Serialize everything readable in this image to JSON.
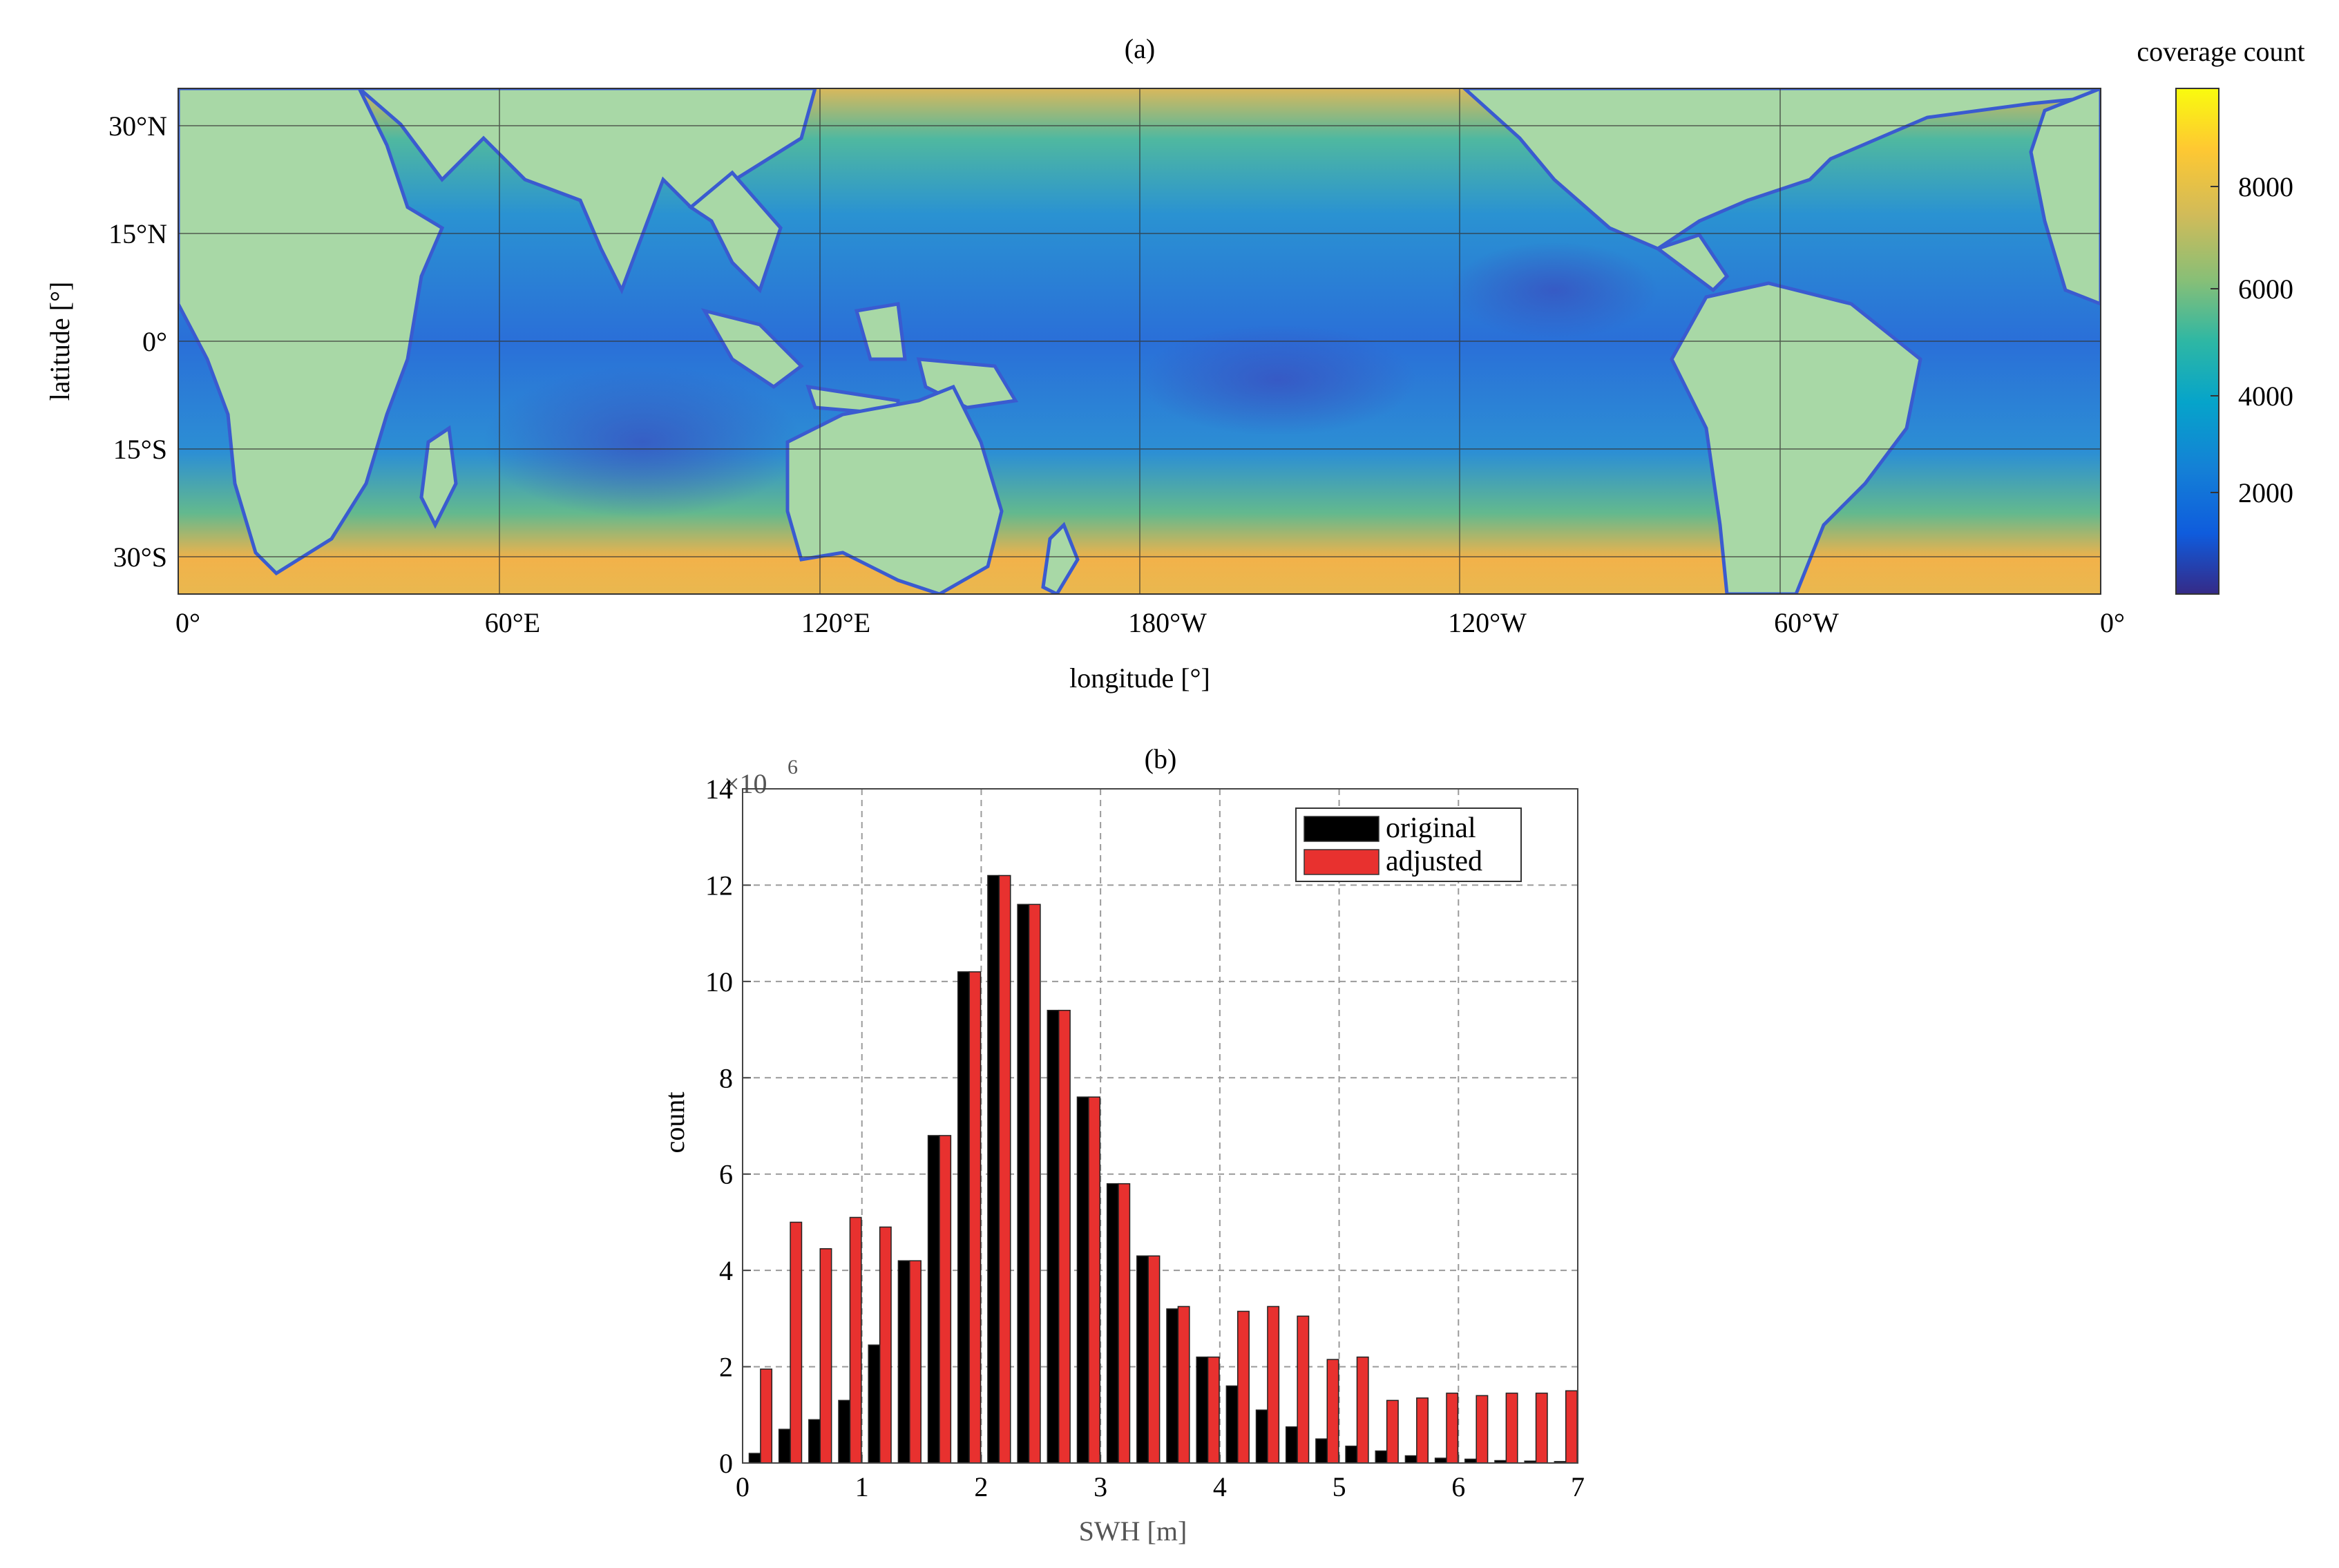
{
  "map_panel": {
    "label": "(a)",
    "xlabel": "longitude [°]",
    "ylabel": "latitude [°]",
    "lon_ticks": [
      "0°",
      "60°E",
      "120°E",
      "180°W",
      "120°W",
      "60°W",
      "0°"
    ],
    "lat_ticks": [
      "30°N",
      "15°N",
      "0°",
      "15°S",
      "30°S"
    ],
    "colorbar": {
      "title": "coverage count",
      "ticks": [
        "2000",
        "4000",
        "6000",
        "8000"
      ],
      "colormap": "parula",
      "range": [
        0,
        10000
      ]
    },
    "colors": {
      "land": "#a8d8a6"
    }
  },
  "chart_data": {
    "type": "bar",
    "title": "(b)",
    "xlabel": "SWH [m]",
    "ylabel": "count",
    "y_multiplier": "×10",
    "y_multiplier_exponent": "6",
    "xlim": [
      0,
      7
    ],
    "ylim": [
      0,
      14
    ],
    "x_ticks": [
      "0",
      "1",
      "2",
      "3",
      "4",
      "5",
      "6",
      "7"
    ],
    "y_ticks": [
      "0",
      "2",
      "4",
      "6",
      "8",
      "10",
      "12",
      "14"
    ],
    "grid": true,
    "legend_position": "top-right",
    "x": [
      0.15,
      0.4,
      0.65,
      0.9,
      1.15,
      1.4,
      1.65,
      1.9,
      2.15,
      2.4,
      2.65,
      2.9,
      3.15,
      3.4,
      3.65,
      3.9,
      4.15,
      4.4,
      4.65,
      4.9,
      5.15,
      5.4,
      5.65,
      5.9,
      6.15,
      6.4,
      6.65,
      6.9
    ],
    "series": [
      {
        "name": "original",
        "color": "#000000",
        "values": [
          0.2,
          0.7,
          0.9,
          1.3,
          2.45,
          4.2,
          6.8,
          10.2,
          12.2,
          11.6,
          9.4,
          7.6,
          5.8,
          4.3,
          3.2,
          2.2,
          1.6,
          1.1,
          0.75,
          0.5,
          0.35,
          0.25,
          0.15,
          0.1,
          0.08,
          0.05,
          0.04,
          0.03
        ]
      },
      {
        "name": "adjusted",
        "color": "#e8312f",
        "values": [
          1.95,
          5.0,
          4.45,
          5.1,
          4.9,
          4.2,
          6.8,
          10.2,
          12.2,
          11.6,
          9.4,
          7.6,
          5.8,
          4.3,
          3.25,
          2.2,
          3.15,
          3.25,
          3.05,
          2.15,
          2.2,
          1.3,
          1.35,
          1.45,
          1.4,
          1.45,
          1.45,
          1.5
        ]
      }
    ]
  }
}
